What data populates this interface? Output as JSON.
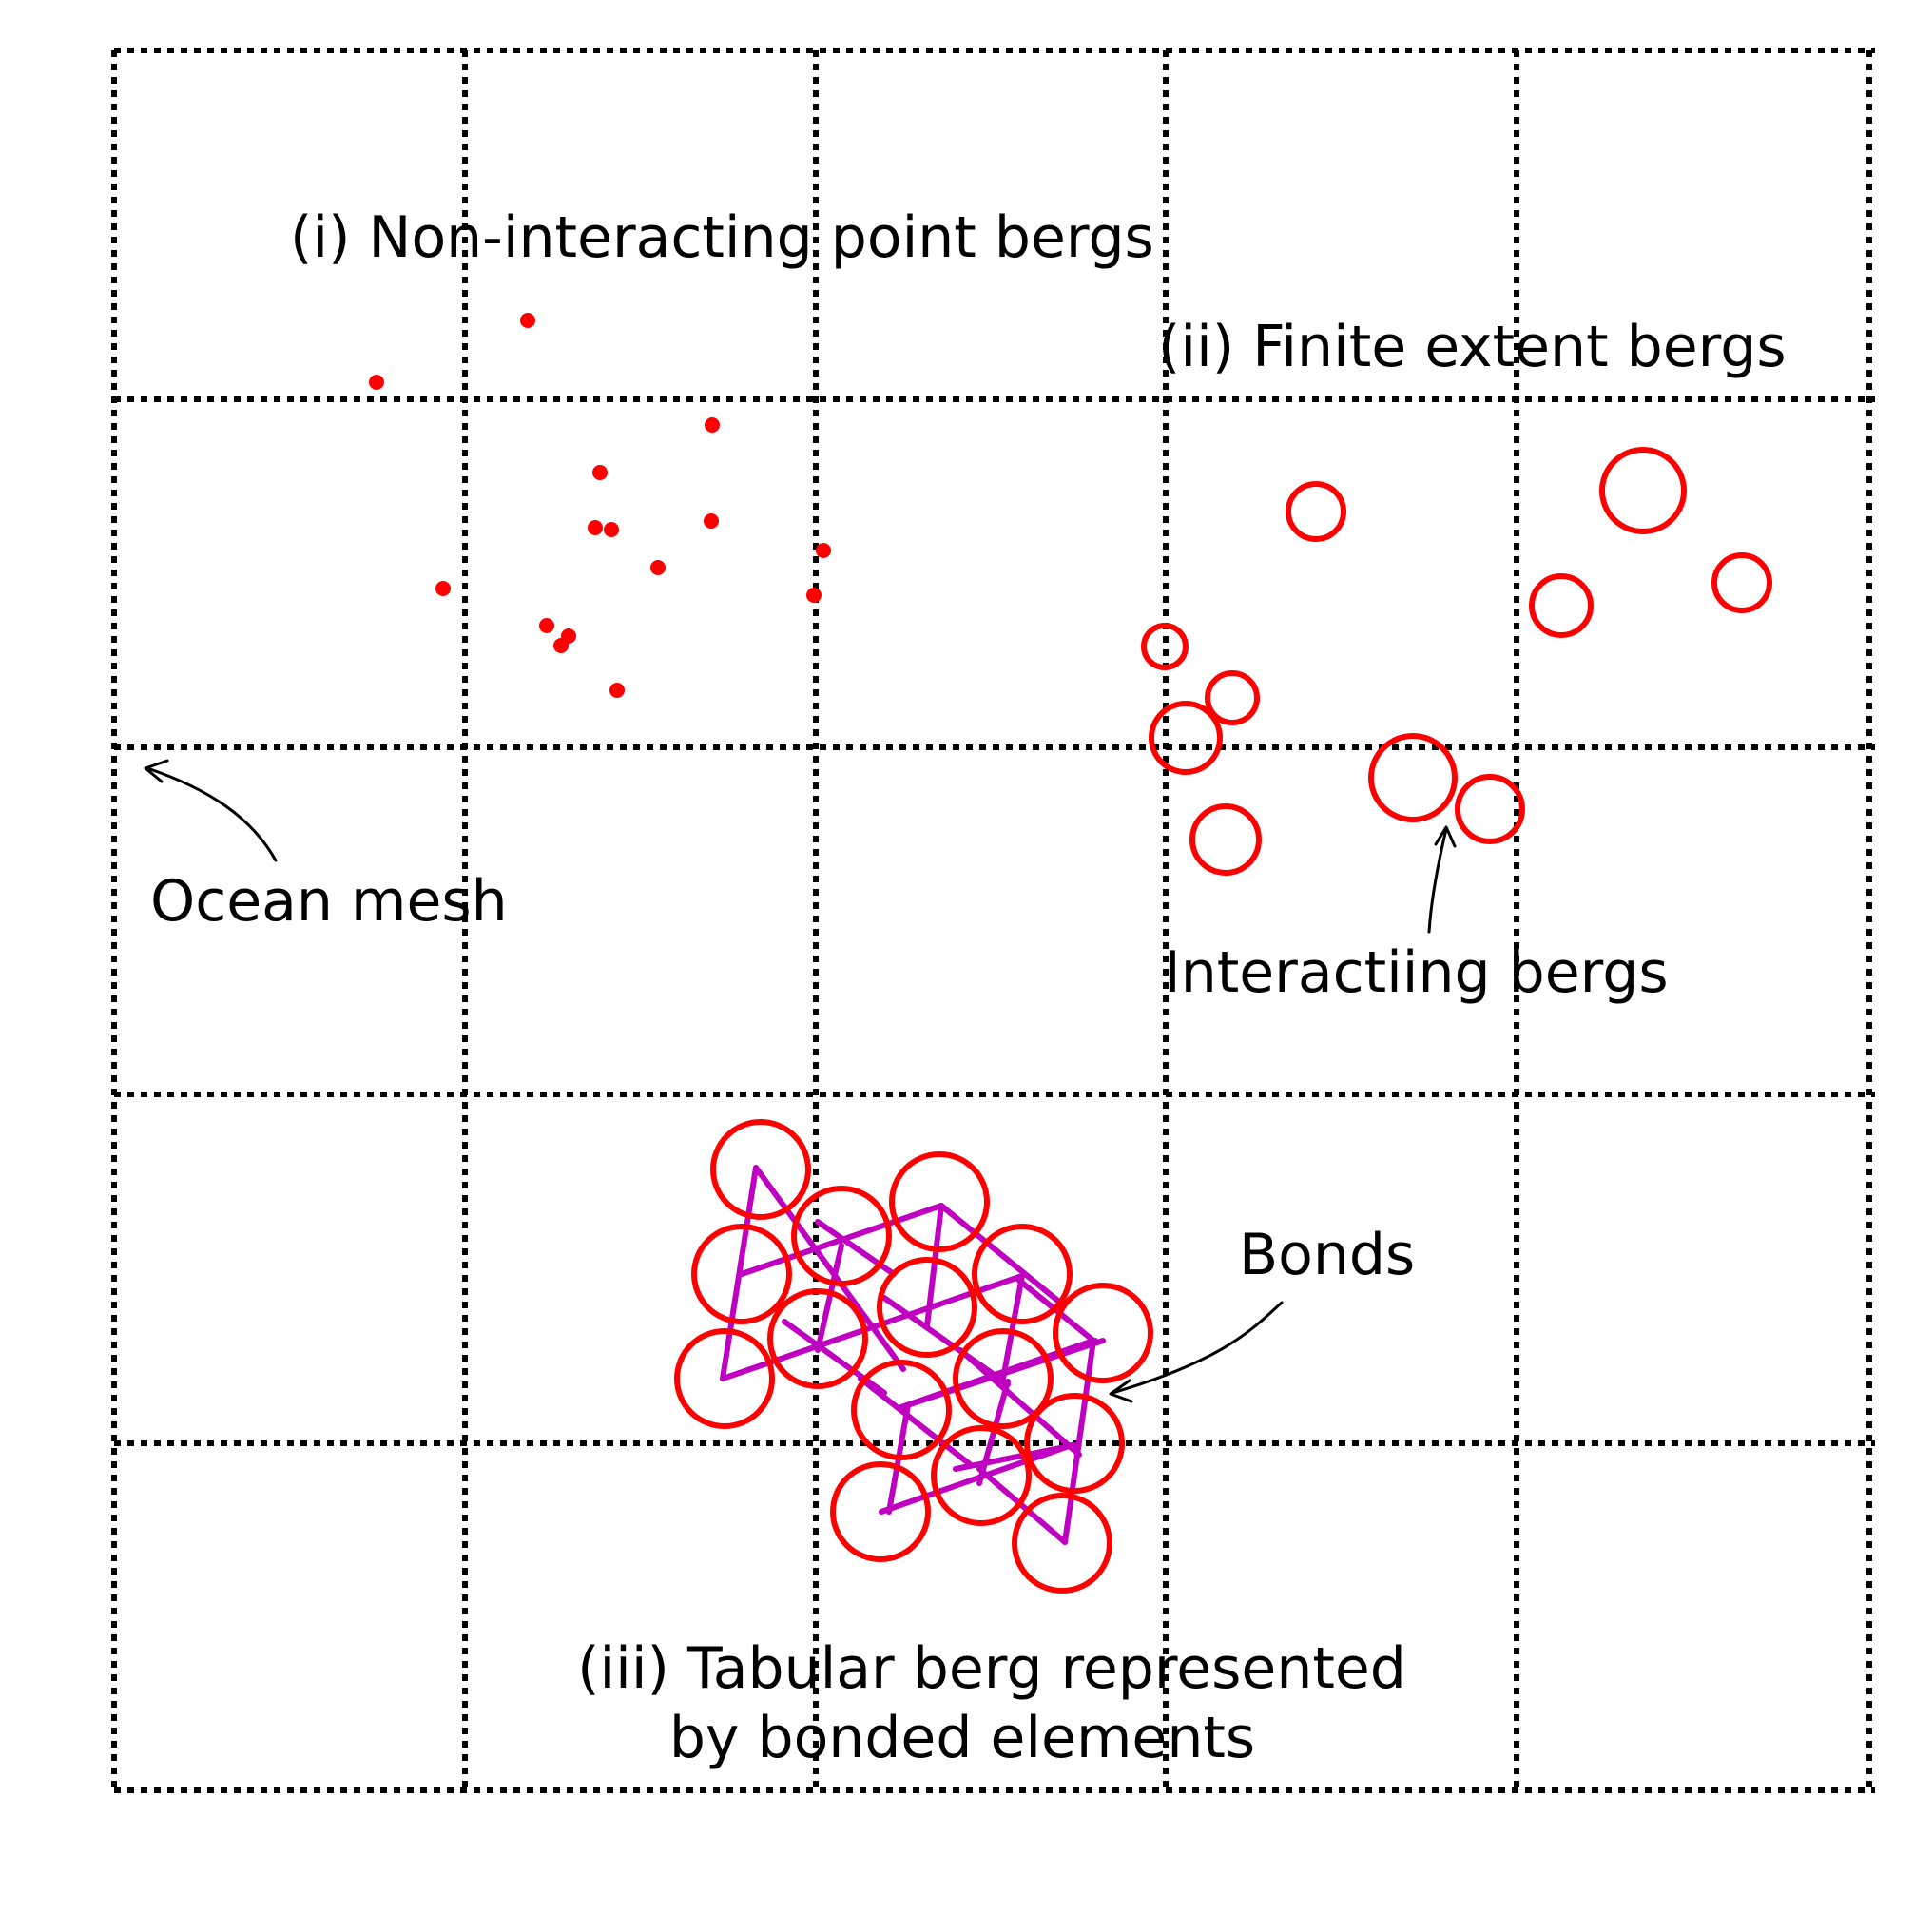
{
  "labels": {
    "point_bergs": "(i) Non-interacting point bergs",
    "finite_bergs": "(ii) Finite extent bergs",
    "ocean_mesh": "Ocean mesh",
    "interacting": "Interactiing bergs",
    "bonds": "Bonds",
    "tabular_line1": "(iii) Tabular berg represented",
    "tabular_line2": "by bonded elements"
  },
  "colors": {
    "mesh": "#000000",
    "berg": "#ff0000",
    "bond": "#c000c0",
    "text": "#000000"
  },
  "mesh": {
    "rows": 5,
    "cols": 5
  }
}
